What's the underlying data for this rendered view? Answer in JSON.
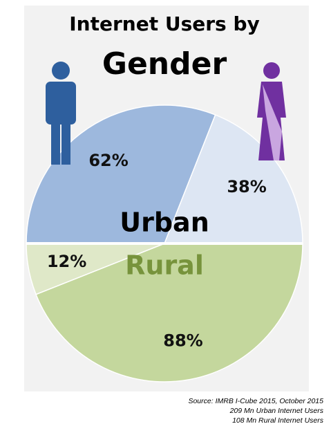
{
  "chart_data": {
    "type": "split-pie",
    "title": [
      "Internet Users by",
      "Gender"
    ],
    "groups": [
      {
        "name": "Urban",
        "name_color": "#000000",
        "colors": [
          "#9db8dd",
          "#dde6f3"
        ],
        "values": [
          62,
          38
        ],
        "value_labels": [
          "62%",
          "38%"
        ]
      },
      {
        "name": "Rural",
        "name_color": "#77933c",
        "colors": [
          "#c4d79d",
          "#dfe8c8"
        ],
        "values": [
          88,
          12
        ],
        "value_labels": [
          "88%",
          "12%"
        ]
      }
    ],
    "notes": [
      "Source: IMRB I-Cube 2015, October 2015",
      "209 Mn Urban Internet Users",
      "108 Mn Rural Internet Users"
    ]
  }
}
